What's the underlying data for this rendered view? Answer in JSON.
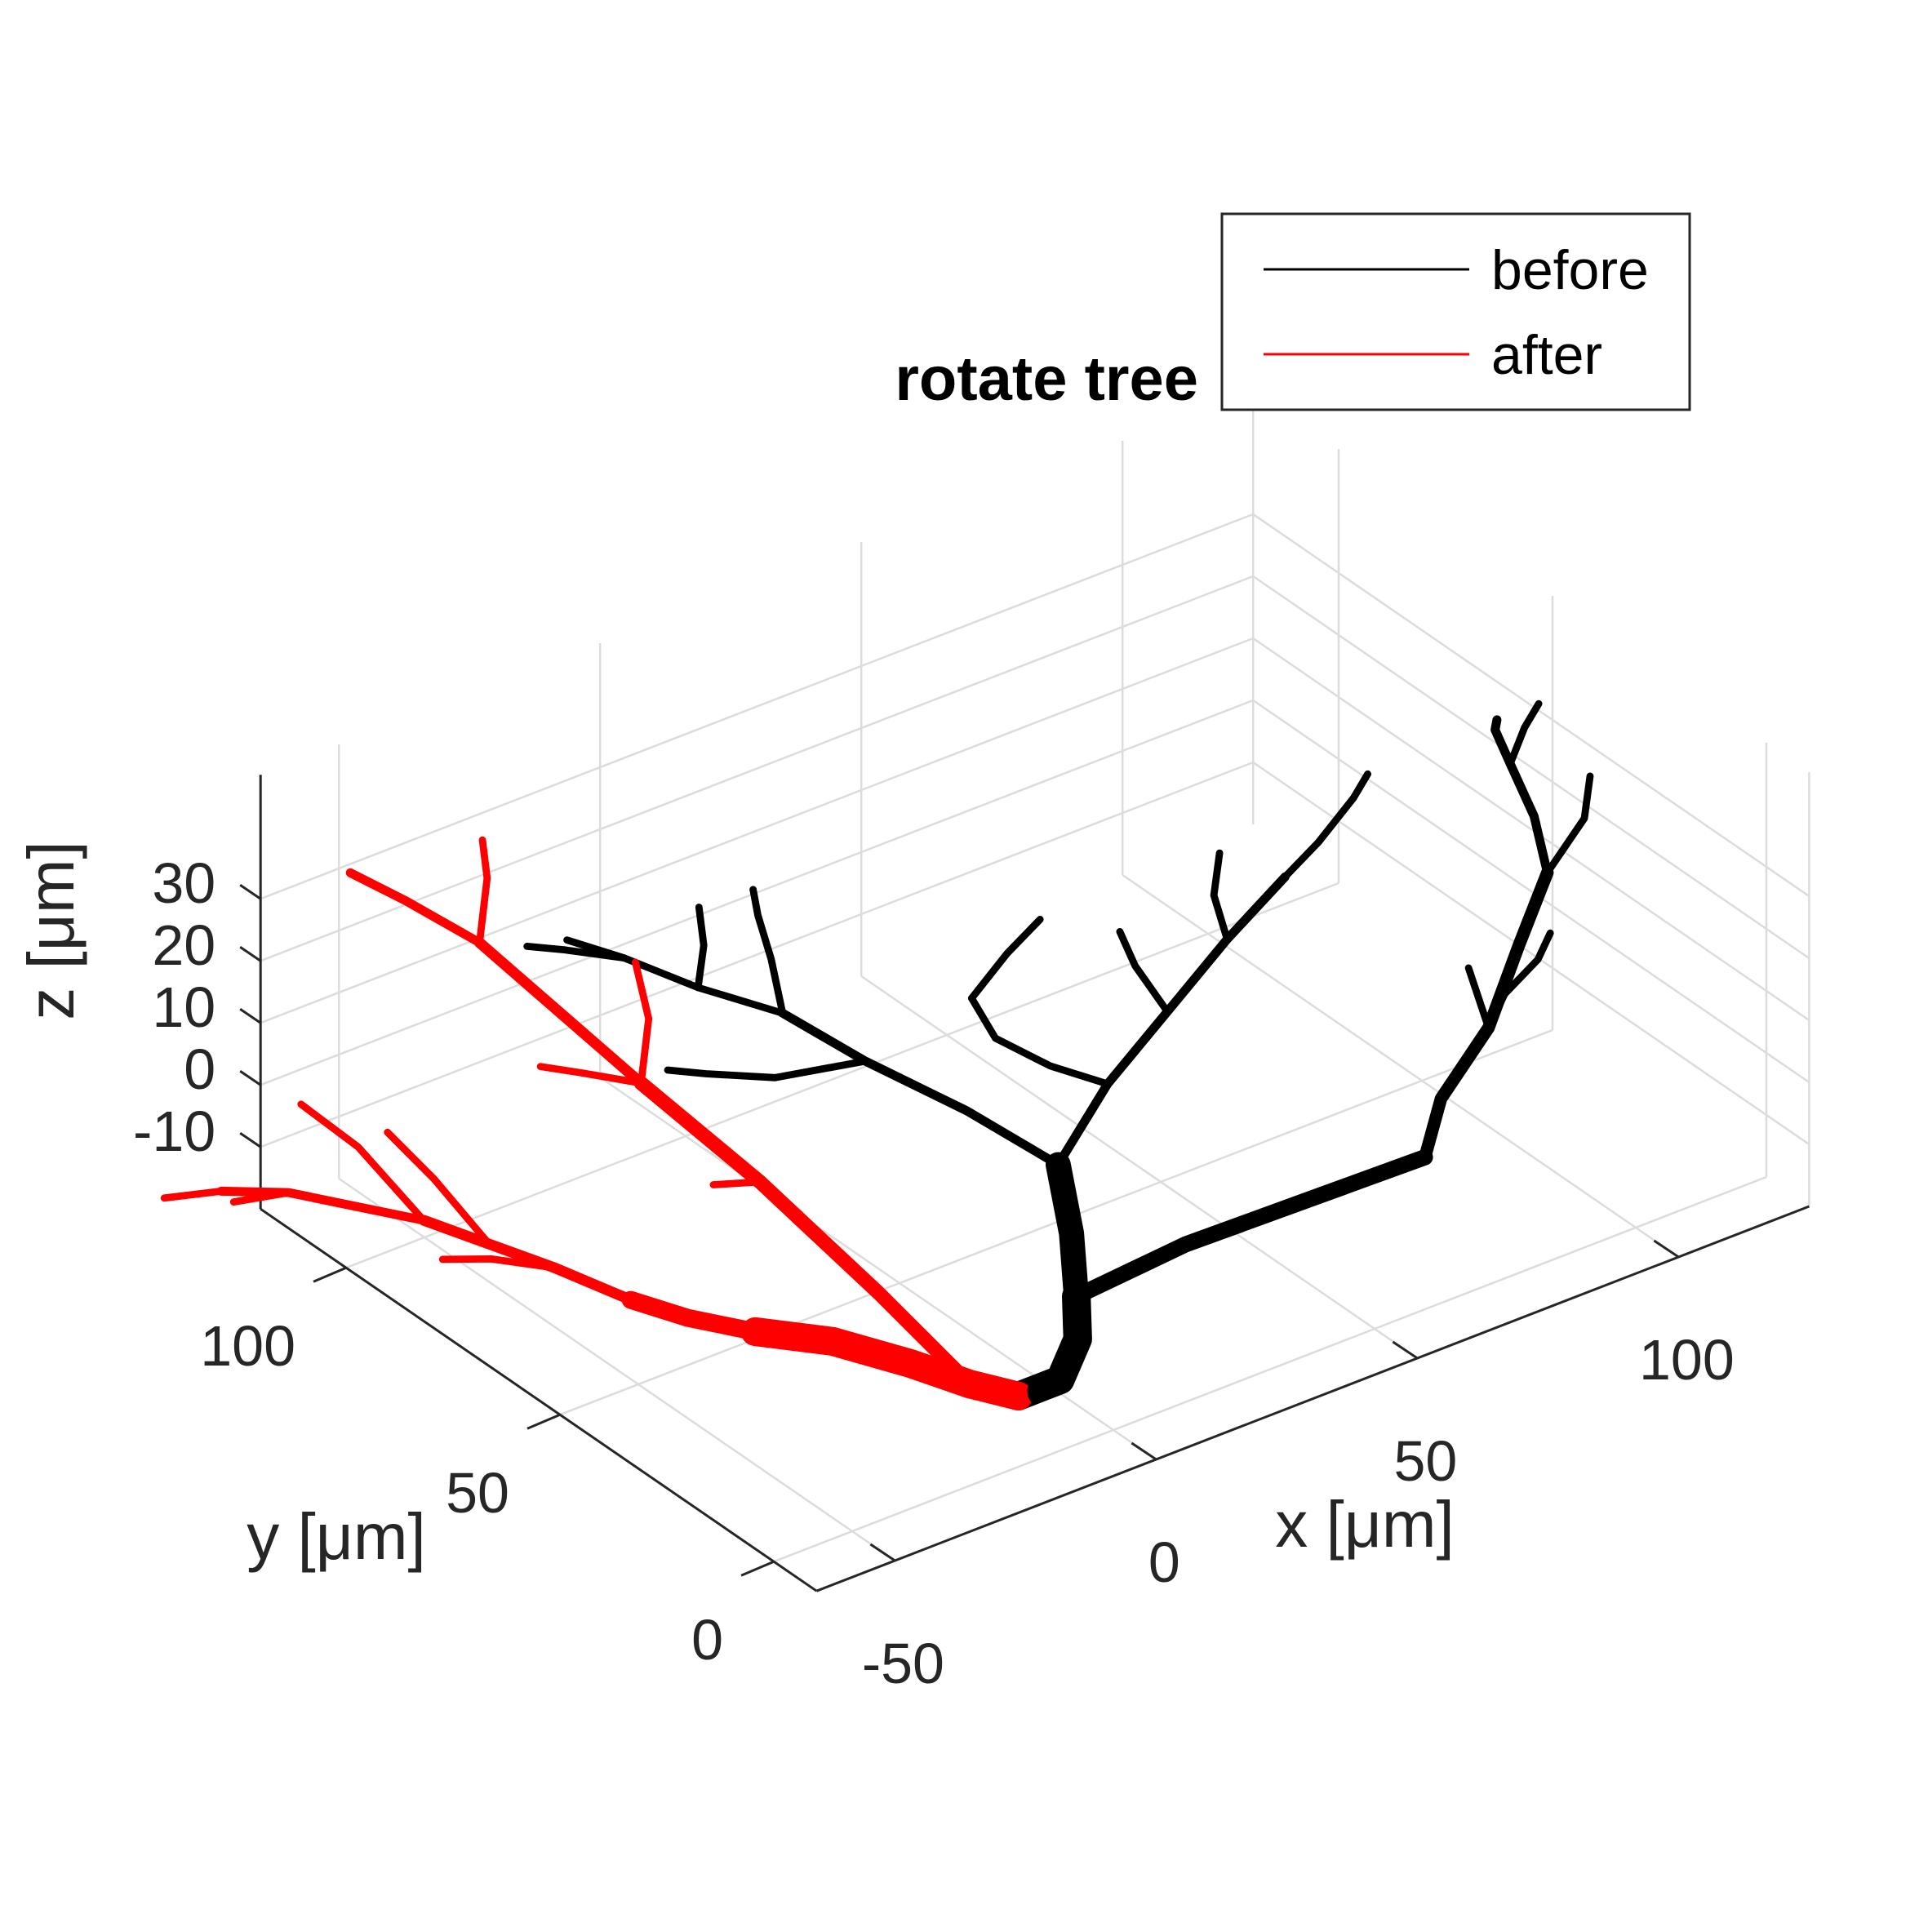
{
  "chart_data": {
    "type": "line",
    "projection": "3d",
    "title": "rotate tree",
    "xlabel": "x [μm]",
    "ylabel": "y [μm]",
    "zlabel": "z [μm]",
    "xlim": [
      -65,
      125
    ],
    "ylim": [
      -10,
      120
    ],
    "zlim": [
      -20,
      50
    ],
    "xticks": [
      -50,
      0,
      50,
      100
    ],
    "yticks": [
      0,
      50,
      100
    ],
    "zticks": [
      -10,
      0,
      10,
      20,
      30
    ],
    "xtick_labels": [
      "-50",
      "0",
      "50",
      "100"
    ],
    "ytick_labels": [
      "0",
      "50",
      "100"
    ],
    "ztick_labels": [
      "-10",
      "0",
      "10",
      "20",
      "30"
    ],
    "grid": true,
    "legend_position": "top-right",
    "series": [
      {
        "name": "before",
        "color": "#000000",
        "branches": [
          {
            "width": 16,
            "points": [
              [
                -10,
                10,
                -16
              ],
              [
                -6,
                10,
                -16
              ],
              [
                -2,
                10,
                -16
              ],
              [
                3,
                12,
                -12
              ],
              [
                6,
                16,
                -8
              ]
            ]
          },
          {
            "width": 14,
            "points": [
              [
                6,
                16,
                -8
              ],
              [
                10,
                22,
                -2
              ],
              [
                14,
                30,
                4
              ]
            ]
          },
          {
            "width": 9,
            "points": [
              [
                6,
                16,
                -8
              ],
              [
                22,
                10,
                -2
              ],
              [
                40,
                4,
                2
              ],
              [
                58,
                -2,
                6
              ]
            ]
          },
          {
            "width": 7,
            "points": [
              [
                58,
                -2,
                6
              ],
              [
                66,
                4,
                10
              ],
              [
                80,
                10,
                14
              ],
              [
                94,
                20,
                18
              ],
              [
                106,
                28,
                22
              ]
            ]
          },
          {
            "width": 5,
            "points": [
              [
                106,
                28,
                22
              ],
              [
                110,
                36,
                26
              ],
              [
                112,
                44,
                30
              ],
              [
                114,
                50,
                32
              ],
              [
                116,
                52,
                32
              ]
            ]
          },
          {
            "width": 4,
            "points": [
              [
                112,
                44,
                30
              ],
              [
                118,
                48,
                32
              ],
              [
                124,
                52,
                32
              ]
            ]
          },
          {
            "width": 4,
            "points": [
              [
                106,
                28,
                22
              ],
              [
                118,
                34,
                24
              ],
              [
                124,
                40,
                26
              ]
            ]
          },
          {
            "width": 4,
            "points": [
              [
                80,
                10,
                14
              ],
              [
                86,
                22,
                16
              ]
            ]
          },
          {
            "width": 4,
            "points": [
              [
                80,
                10,
                14
              ],
              [
                88,
                16,
                14
              ],
              [
                96,
                18,
                16
              ],
              [
                100,
                20,
                18
              ]
            ]
          },
          {
            "width": 5,
            "points": [
              [
                14,
                30,
                4
              ],
              [
                30,
                38,
                8
              ],
              [
                48,
                46,
                10
              ],
              [
                66,
                54,
                12
              ],
              [
                82,
                60,
                14
              ]
            ]
          },
          {
            "width": 4,
            "points": [
              [
                82,
                60,
                14
              ],
              [
                90,
                62,
                16
              ],
              [
                100,
                66,
                18
              ],
              [
                106,
                70,
                18
              ]
            ]
          },
          {
            "width": 4,
            "points": [
              [
                66,
                54,
                12
              ],
              [
                70,
                62,
                14
              ],
              [
                76,
                68,
                16
              ]
            ]
          },
          {
            "width": 4,
            "points": [
              [
                48,
                46,
                10
              ],
              [
                50,
                56,
                12
              ],
              [
                52,
                62,
                14
              ]
            ]
          },
          {
            "width": 4,
            "points": [
              [
                30,
                38,
                8
              ],
              [
                24,
                44,
                10
              ],
              [
                20,
                52,
                12
              ],
              [
                22,
                60,
                14
              ]
            ]
          },
          {
            "width": 4,
            "points": [
              [
                22,
                60,
                14
              ],
              [
                32,
                64,
                16
              ],
              [
                40,
                66,
                18
              ]
            ]
          },
          {
            "width": 5,
            "points": [
              [
                14,
                30,
                4
              ],
              [
                8,
                44,
                8
              ],
              [
                0,
                58,
                12
              ],
              [
                -6,
                70,
                16
              ]
            ]
          },
          {
            "width": 4,
            "points": [
              [
                -6,
                70,
                16
              ],
              [
                -14,
                80,
                18
              ],
              [
                -20,
                90,
                20
              ],
              [
                -26,
                96,
                22
              ]
            ]
          },
          {
            "width": 4,
            "points": [
              [
                -6,
                70,
                16
              ],
              [
                0,
                80,
                18
              ],
              [
                4,
                88,
                20
              ],
              [
                8,
                94,
                20
              ]
            ]
          },
          {
            "width": 4,
            "points": [
              [
                -14,
                80,
                18
              ],
              [
                -8,
                86,
                20
              ],
              [
                -4,
                92,
                22
              ]
            ]
          },
          {
            "width": 4,
            "points": [
              [
                0,
                58,
                12
              ],
              [
                -14,
                62,
                12
              ],
              [
                -24,
                66,
                14
              ],
              [
                -28,
                70,
                14
              ]
            ]
          },
          {
            "width": 4,
            "points": [
              [
                -20,
                90,
                20
              ],
              [
                -28,
                94,
                22
              ],
              [
                -32,
                98,
                22
              ]
            ]
          }
        ]
      },
      {
        "name": "after",
        "color": "#ff0000",
        "branches": [
          {
            "width": 16,
            "points": [
              [
                -10,
                10,
                -16
              ],
              [
                -16,
                14,
                -14
              ],
              [
                -24,
                18,
                -10
              ],
              [
                -34,
                24,
                -6
              ],
              [
                -44,
                30,
                -4
              ]
            ]
          },
          {
            "width": 10,
            "points": [
              [
                -44,
                30,
                -4
              ],
              [
                -52,
                36,
                -2
              ],
              [
                -58,
                42,
                0
              ]
            ]
          },
          {
            "width": 8,
            "points": [
              [
                -16,
                14,
                -14
              ],
              [
                -22,
                28,
                -4
              ],
              [
                -30,
                46,
                8
              ],
              [
                -38,
                64,
                18
              ]
            ]
          },
          {
            "width": 6,
            "points": [
              [
                -38,
                64,
                18
              ],
              [
                -42,
                78,
                24
              ],
              [
                -46,
                92,
                30
              ]
            ]
          },
          {
            "width": 5,
            "points": [
              [
                -46,
                92,
                30
              ],
              [
                -52,
                102,
                34
              ],
              [
                -56,
                110,
                36
              ]
            ]
          },
          {
            "width": 4,
            "points": [
              [
                -46,
                92,
                30
              ],
              [
                -38,
                100,
                34
              ],
              [
                -34,
                106,
                36
              ]
            ]
          },
          {
            "width": 4,
            "points": [
              [
                -38,
                64,
                18
              ],
              [
                -30,
                72,
                22
              ],
              [
                -26,
                80,
                26
              ]
            ]
          },
          {
            "width": 4,
            "points": [
              [
                -38,
                64,
                18
              ],
              [
                -48,
                66,
                22
              ],
              [
                -54,
                68,
                24
              ]
            ]
          },
          {
            "width": 6,
            "points": [
              [
                -58,
                42,
                0
              ],
              [
                -66,
                50,
                4
              ],
              [
                -72,
                58,
                6
              ],
              [
                -78,
                66,
                8
              ]
            ]
          },
          {
            "width": 5,
            "points": [
              [
                -78,
                66,
                8
              ],
              [
                -86,
                72,
                10
              ],
              [
                -94,
                78,
                12
              ],
              [
                -102,
                84,
                12
              ]
            ]
          },
          {
            "width": 4,
            "points": [
              [
                -72,
                58,
                6
              ],
              [
                -76,
                66,
                14
              ],
              [
                -80,
                72,
                20
              ]
            ]
          },
          {
            "width": 4,
            "points": [
              [
                -78,
                66,
                8
              ],
              [
                -84,
                74,
                18
              ],
              [
                -90,
                80,
                24
              ]
            ]
          },
          {
            "width": 4,
            "points": [
              [
                -66,
                50,
                4
              ],
              [
                -70,
                60,
                2
              ],
              [
                -76,
                64,
                2
              ]
            ]
          },
          {
            "width": 4,
            "points": [
              [
                -102,
                84,
                12
              ],
              [
                -108,
                90,
                10
              ]
            ]
          },
          {
            "width": 4,
            "points": [
              [
                -94,
                78,
                12
              ],
              [
                -98,
                86,
                8
              ]
            ]
          },
          {
            "width": 4,
            "points": [
              [
                -30,
                46,
                8
              ],
              [
                -34,
                52,
                6
              ]
            ]
          }
        ]
      }
    ]
  }
}
